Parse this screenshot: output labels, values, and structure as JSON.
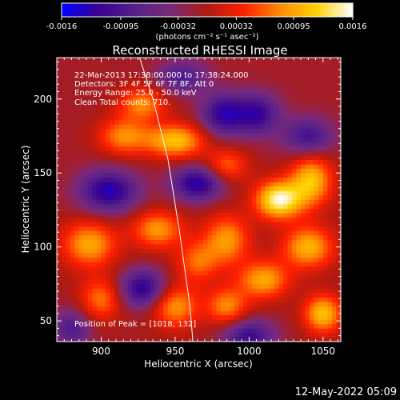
{
  "chart_data": {
    "type": "heatmap",
    "title": "Reconstructed RHESSI Image",
    "xlabel": "Heliocentric X (arcsec)",
    "ylabel": "Heliocentric Y (arcsec)",
    "xlim": [
      870,
      1062
    ],
    "ylim": [
      36,
      228
    ],
    "x_ticks": [
      900,
      950,
      1000,
      1050
    ],
    "y_ticks": [
      50,
      100,
      150,
      200
    ],
    "colorbar": {
      "range": [
        -0.0016,
        0.0016
      ],
      "tick_values": [
        -0.0016,
        -0.00095,
        -0.00032,
        0.00032,
        0.00095,
        0.0016
      ],
      "tick_labels": [
        "-0.0016",
        "-0.00095",
        "-0.00032",
        "0.00032",
        "0.00095",
        "0.0016"
      ],
      "unit_label": "(photons cm⁻² s⁻¹ asec⁻²)",
      "stops": [
        "#0000ff",
        "#3a0090",
        "#55208a",
        "#7a2a7a",
        "#b01a10",
        "#ff2000",
        "#ff8a00",
        "#ffd000",
        "#ffffff"
      ]
    },
    "annotations": [
      "22-Mar-2013 17:38:00.000 to 17:38:24.000",
      "Detectors: 3F 4F 5F 6F 7F 8F, Att 0",
      "Energy Range: 25.0 - 50.0 keV",
      "Clean    Total counts: 710."
    ],
    "peak_label": "Position of Peak = [1018, 132]",
    "peak": [
      1018,
      132
    ],
    "limb": {
      "x": [
        926,
        935,
        945,
        953,
        960,
        962
      ],
      "y": [
        228,
        200,
        160,
        110,
        60,
        36
      ]
    },
    "hot_sources": [
      {
        "x": 1020,
        "y": 132,
        "level": 1.0,
        "sx": 11,
        "sy": 9
      },
      {
        "x": 1042,
        "y": 145,
        "level": 0.75,
        "sx": 10,
        "sy": 12
      },
      {
        "x": 1040,
        "y": 100,
        "level": 0.7,
        "sx": 12,
        "sy": 10
      },
      {
        "x": 1050,
        "y": 55,
        "level": 0.75,
        "sx": 9,
        "sy": 9
      },
      {
        "x": 1010,
        "y": 78,
        "level": 0.65,
        "sx": 12,
        "sy": 9
      },
      {
        "x": 985,
        "y": 105,
        "level": 0.6,
        "sx": 11,
        "sy": 12
      },
      {
        "x": 950,
        "y": 172,
        "level": 0.75,
        "sx": 14,
        "sy": 8
      },
      {
        "x": 915,
        "y": 175,
        "level": 0.55,
        "sx": 12,
        "sy": 9
      },
      {
        "x": 928,
        "y": 197,
        "level": 0.55,
        "sx": 11,
        "sy": 8
      },
      {
        "x": 892,
        "y": 102,
        "level": 0.65,
        "sx": 13,
        "sy": 11
      },
      {
        "x": 938,
        "y": 112,
        "level": 0.6,
        "sx": 12,
        "sy": 9
      },
      {
        "x": 950,
        "y": 60,
        "level": 0.6,
        "sx": 11,
        "sy": 10
      },
      {
        "x": 900,
        "y": 65,
        "level": 0.5,
        "sx": 10,
        "sy": 10
      },
      {
        "x": 985,
        "y": 155,
        "level": 0.45,
        "sx": 10,
        "sy": 8
      },
      {
        "x": 965,
        "y": 90,
        "level": 0.45,
        "sx": 10,
        "sy": 10
      },
      {
        "x": 985,
        "y": 60,
        "level": 0.55,
        "sx": 10,
        "sy": 9
      }
    ],
    "cold_sources": [
      {
        "x": 905,
        "y": 138,
        "level": -0.8,
        "sx": 14,
        "sy": 10
      },
      {
        "x": 965,
        "y": 143,
        "level": -0.8,
        "sx": 12,
        "sy": 8
      },
      {
        "x": 982,
        "y": 190,
        "level": -0.7,
        "sx": 10,
        "sy": 10
      },
      {
        "x": 1005,
        "y": 190,
        "level": -0.7,
        "sx": 11,
        "sy": 10
      },
      {
        "x": 928,
        "y": 72,
        "level": -0.75,
        "sx": 11,
        "sy": 9
      },
      {
        "x": 1000,
        "y": 40,
        "level": -0.65,
        "sx": 12,
        "sy": 8
      },
      {
        "x": 1040,
        "y": 175,
        "level": -0.6,
        "sx": 12,
        "sy": 9
      },
      {
        "x": 955,
        "y": 215,
        "level": -0.5,
        "sx": 12,
        "sy": 8
      },
      {
        "x": 880,
        "y": 45,
        "level": -0.5,
        "sx": 9,
        "sy": 9
      }
    ]
  },
  "footer": {
    "date": "12-May-2022 05:09"
  }
}
